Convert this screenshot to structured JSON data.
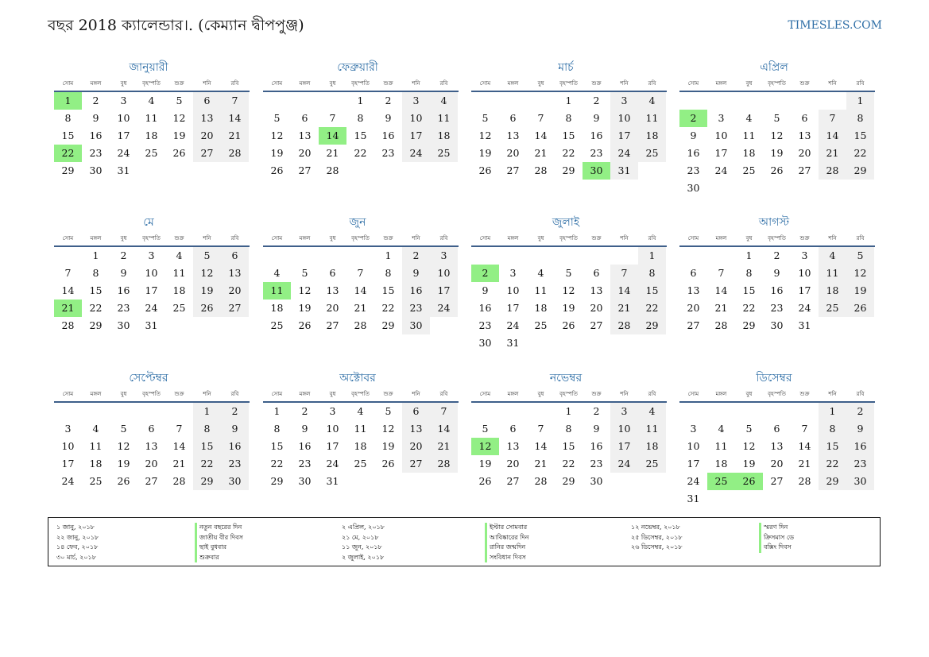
{
  "header": {
    "title": "বছর 2018 ক্যালেন্ডার।. (কেম্যান দ্বীপপুঞ্জ)",
    "site": "TIMESLES.COM"
  },
  "weekdays": [
    "সোম",
    "মঙ্গল",
    "বুধ",
    "বৃহস্পতি",
    "শুক্র",
    "শনি",
    "রবি"
  ],
  "months": [
    {
      "name": "জানুয়ারী",
      "first_weekday": 0,
      "days": 31,
      "holidays": [
        1,
        22
      ]
    },
    {
      "name": "ফেব্রুয়ারী",
      "first_weekday": 3,
      "days": 28,
      "holidays": [
        14
      ]
    },
    {
      "name": "মার্চ",
      "first_weekday": 3,
      "days": 31,
      "holidays": [
        30
      ]
    },
    {
      "name": "এপ্রিল",
      "first_weekday": 6,
      "days": 30,
      "holidays": [
        2
      ]
    },
    {
      "name": "মে",
      "first_weekday": 1,
      "days": 31,
      "holidays": [
        21
      ]
    },
    {
      "name": "জুন",
      "first_weekday": 4,
      "days": 30,
      "holidays": [
        11
      ]
    },
    {
      "name": "জুলাই",
      "first_weekday": 6,
      "days": 31,
      "holidays": [
        2
      ]
    },
    {
      "name": "আগস্ট",
      "first_weekday": 2,
      "days": 31,
      "holidays": []
    },
    {
      "name": "সেপ্টেম্বর",
      "first_weekday": 5,
      "days": 30,
      "holidays": []
    },
    {
      "name": "অক্টোবর",
      "first_weekday": 0,
      "days": 31,
      "holidays": []
    },
    {
      "name": "নভেম্বর",
      "first_weekday": 3,
      "days": 30,
      "holidays": [
        12
      ]
    },
    {
      "name": "ডিসেম্বর",
      "first_weekday": 5,
      "days": 31,
      "holidays": [
        25,
        26
      ]
    }
  ],
  "legend": [
    [
      {
        "date": "১ জানু, ২০১৮",
        "name": "নতুন বছরের দিন"
      },
      {
        "date": "২২ জানু, ২০১৮",
        "name": "জাতীয় বীর দিবস"
      },
      {
        "date": "১৪ ফেব, ২০১৮",
        "name": "ছাই বুধবার"
      },
      {
        "date": "৩০ মার্চ, ২০১৮",
        "name": "শুক্রবার"
      }
    ],
    [
      {
        "date": "২ এপ্রিল, ২০১৮",
        "name": "ইস্টার সোমবার"
      },
      {
        "date": "২১ মে, ২০১৮",
        "name": "আবিষ্কারের দিন"
      },
      {
        "date": "১১ জুন, ২০১৮",
        "name": "রানির জন্মদিন"
      },
      {
        "date": "২ জুলাই, ২০১৮",
        "name": "সংবিধান দিবস"
      }
    ],
    [
      {
        "date": "১২ নভেম্বর, ২০১৮",
        "name": "স্মরণ দিন"
      },
      {
        "date": "২৫ ডিসেম্বর, ২০১৮",
        "name": "ক্রিসমাস ডে"
      },
      {
        "date": "২৬ ডিসেম্বর, ২০১৮",
        "name": "বক্সিং দিবস"
      }
    ]
  ]
}
